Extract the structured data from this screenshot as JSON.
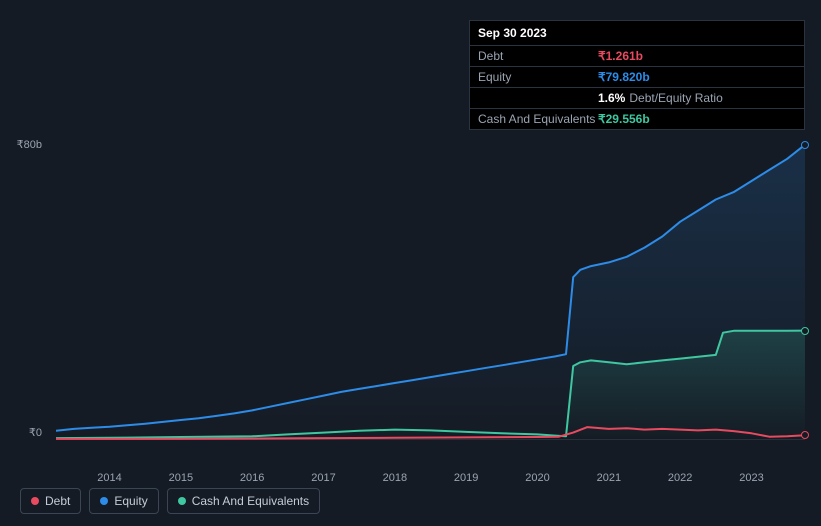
{
  "tooltip": {
    "date": "Sep 30 2023",
    "debt_label": "Debt",
    "debt_value": "₹1.261b",
    "equity_label": "Equity",
    "equity_value": "₹79.820b",
    "ratio_pct": "1.6%",
    "ratio_label": "Debt/Equity Ratio",
    "cash_label": "Cash And Equivalents",
    "cash_value": "₹29.556b"
  },
  "chart": {
    "type": "line",
    "background_color": "#151b24",
    "ylim": [
      0,
      80
    ],
    "y_unit_prefix": "₹",
    "y_unit_suffix": "b",
    "y_ticks": [
      0,
      80
    ],
    "x_ticks": [
      "2014",
      "2015",
      "2016",
      "2017",
      "2018",
      "2019",
      "2020",
      "2021",
      "2022",
      "2023"
    ],
    "x_range": [
      2013.25,
      2023.75
    ],
    "series": {
      "equity": {
        "color": "#2d8ce8",
        "fill_opacity": 0.12,
        "line_width": 2,
        "points": [
          [
            2013.25,
            2.5
          ],
          [
            2013.5,
            3.0
          ],
          [
            2013.75,
            3.3
          ],
          [
            2014.0,
            3.6
          ],
          [
            2014.25,
            4.0
          ],
          [
            2014.5,
            4.4
          ],
          [
            2014.75,
            4.9
          ],
          [
            2015.0,
            5.4
          ],
          [
            2015.25,
            5.9
          ],
          [
            2015.5,
            6.5
          ],
          [
            2015.75,
            7.2
          ],
          [
            2016.0,
            8.0
          ],
          [
            2016.25,
            9.0
          ],
          [
            2016.5,
            10.0
          ],
          [
            2016.75,
            11.0
          ],
          [
            2017.0,
            12.0
          ],
          [
            2017.25,
            13.0
          ],
          [
            2017.5,
            13.8
          ],
          [
            2017.75,
            14.6
          ],
          [
            2018.0,
            15.4
          ],
          [
            2018.25,
            16.2
          ],
          [
            2018.5,
            17.0
          ],
          [
            2018.75,
            17.8
          ],
          [
            2019.0,
            18.6
          ],
          [
            2019.25,
            19.4
          ],
          [
            2019.5,
            20.2
          ],
          [
            2019.75,
            21.0
          ],
          [
            2020.0,
            21.8
          ],
          [
            2020.25,
            22.6
          ],
          [
            2020.4,
            23.2
          ],
          [
            2020.5,
            44.0
          ],
          [
            2020.6,
            46.0
          ],
          [
            2020.75,
            47.0
          ],
          [
            2021.0,
            48.0
          ],
          [
            2021.25,
            49.5
          ],
          [
            2021.5,
            52.0
          ],
          [
            2021.75,
            55.0
          ],
          [
            2022.0,
            59.0
          ],
          [
            2022.25,
            62.0
          ],
          [
            2022.5,
            65.0
          ],
          [
            2022.75,
            67.0
          ],
          [
            2023.0,
            70.0
          ],
          [
            2023.25,
            73.0
          ],
          [
            2023.5,
            76.0
          ],
          [
            2023.75,
            79.82
          ]
        ]
      },
      "cash": {
        "color": "#3ec7a0",
        "fill_opacity": 0.12,
        "line_width": 2,
        "points": [
          [
            2013.25,
            0.5
          ],
          [
            2014.0,
            0.6
          ],
          [
            2015.0,
            0.8
          ],
          [
            2016.0,
            1.0
          ],
          [
            2016.5,
            1.5
          ],
          [
            2017.0,
            2.0
          ],
          [
            2017.5,
            2.5
          ],
          [
            2018.0,
            2.8
          ],
          [
            2018.5,
            2.6
          ],
          [
            2019.0,
            2.2
          ],
          [
            2019.5,
            1.8
          ],
          [
            2020.0,
            1.5
          ],
          [
            2020.25,
            1.2
          ],
          [
            2020.4,
            1.0
          ],
          [
            2020.5,
            20.0
          ],
          [
            2020.6,
            21.0
          ],
          [
            2020.75,
            21.5
          ],
          [
            2021.0,
            21.0
          ],
          [
            2021.25,
            20.5
          ],
          [
            2021.5,
            21.0
          ],
          [
            2021.75,
            21.5
          ],
          [
            2022.0,
            22.0
          ],
          [
            2022.25,
            22.5
          ],
          [
            2022.5,
            23.0
          ],
          [
            2022.6,
            29.0
          ],
          [
            2022.75,
            29.5
          ],
          [
            2023.0,
            29.5
          ],
          [
            2023.25,
            29.5
          ],
          [
            2023.5,
            29.5
          ],
          [
            2023.75,
            29.556
          ]
        ]
      },
      "debt": {
        "color": "#e84a5f",
        "fill_opacity": 0.0,
        "line_width": 2,
        "points": [
          [
            2013.25,
            0.3
          ],
          [
            2014.0,
            0.3
          ],
          [
            2015.0,
            0.35
          ],
          [
            2016.0,
            0.4
          ],
          [
            2017.0,
            0.5
          ],
          [
            2018.0,
            0.6
          ],
          [
            2019.0,
            0.7
          ],
          [
            2020.0,
            0.8
          ],
          [
            2020.3,
            0.9
          ],
          [
            2020.5,
            2.0
          ],
          [
            2020.7,
            3.5
          ],
          [
            2021.0,
            3.0
          ],
          [
            2021.25,
            3.2
          ],
          [
            2021.5,
            2.8
          ],
          [
            2021.75,
            3.0
          ],
          [
            2022.0,
            2.8
          ],
          [
            2022.25,
            2.6
          ],
          [
            2022.5,
            2.8
          ],
          [
            2022.75,
            2.4
          ],
          [
            2023.0,
            1.8
          ],
          [
            2023.25,
            0.9
          ],
          [
            2023.5,
            1.0
          ],
          [
            2023.75,
            1.261
          ]
        ]
      }
    }
  },
  "legend": {
    "debt": "Debt",
    "equity": "Equity",
    "cash": "Cash And Equivalents"
  }
}
